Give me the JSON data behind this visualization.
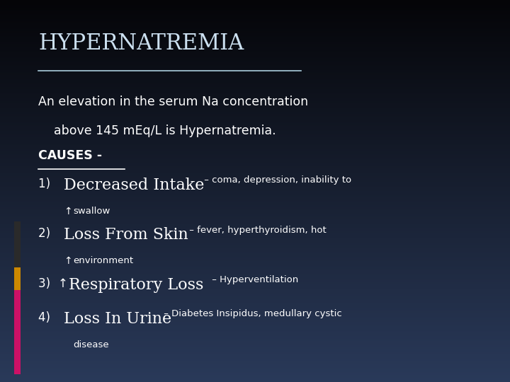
{
  "title": "HYPERNATREMIA",
  "bg_color_topleft": "#050508",
  "bg_color_bottomright": "#2a3a5a",
  "left_bar_dark": "#2a2a2a",
  "left_bar_orange": "#cc8800",
  "left_bar_pink": "#cc1166",
  "title_color": "#cce0f0",
  "text_color": "#ffffff",
  "underline_color": "#aaccdd",
  "line1": "An elevation in the serum Na concentration",
  "line2": "    above 145 mEq/L is Hypernatremia.",
  "causes_label": "CAUSES -",
  "item1_num": "1)  ",
  "item1_big": "Decreased Intake",
  "item1_dash": " – ",
  "item1_small": "coma, depression, inability to",
  "item1_sub_arrow": "↑",
  "item1_sub": "swallow",
  "item2_num": "2)  ",
  "item2_big": "Loss From Skin",
  "item2_dash": " – ",
  "item2_small": "fever, hyperthyroidism, hot",
  "item2_sub_arrow": "↑",
  "item2_sub": "environment",
  "item3_num": "3) ",
  "item3_arrow": "↑",
  "item3_big": " Respiratory Loss",
  "item3_dash": " – ",
  "item3_small": "Hyperventilation",
  "item4_num": "4)  ",
  "item4_big": "Loss In Urine",
  "item4_dash": " – ",
  "item4_small": "Diabetes Insipidus, medullary cystic",
  "item4_sub": "disease"
}
